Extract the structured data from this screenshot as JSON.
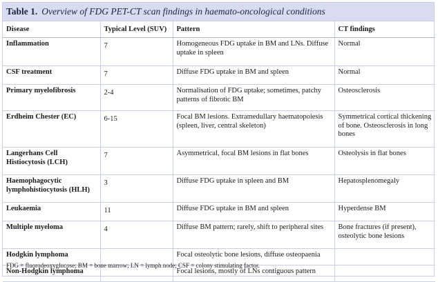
{
  "table": {
    "label": "Table 1.",
    "title": "Overview of FDG PET-CT scan findings in haemato-oncological conditions",
    "headers": [
      "Disease",
      "Typical Level (SUV)",
      "Pattern",
      "CT findings"
    ],
    "rows": [
      {
        "disease": "Inflammation",
        "level": "7",
        "pattern": "Homogeneous FDG uptake in BM and LNs. Diffuse uptake in spleen",
        "ct": "Normal"
      },
      {
        "disease": "CSF treatment",
        "level": "7",
        "pattern": "Diffuse FDG uptake in BM and spleen",
        "ct": "Normal"
      },
      {
        "disease": "Primary myelofibrosis",
        "level": "2-4",
        "pattern": "Normalisation of FDG uptake; sometimes, patchy patterns of fibrotic BM",
        "ct": "Osteosclerosis"
      },
      {
        "disease": "Erdheim Chester (EC)",
        "level": "6-15",
        "pattern": "Focal BM lesions. Extramedullary haematopoiesis (spleen, liver, central skeleton)",
        "ct": "Symmetrical cortical thickening of bone. Osteosclerosis in long bones"
      },
      {
        "disease": "Langerhans Cell Histiocytosis (LCH)",
        "level": "7",
        "pattern": "Asymmetrical, focal BM lesions in flat bones",
        "ct": "Osteolysis in flat bones"
      },
      {
        "disease": "Haemophagocytic lymphohistiocytosis (HLH)",
        "level": "3",
        "pattern": "Diffuse FDG uptake in spleen and BM",
        "ct": "Hepatosplenomegaly"
      },
      {
        "disease": "Leukaemia",
        "level": "11",
        "pattern": "Diffuse FDG uptake in BM and spleen",
        "ct": "Hyperdense BM"
      },
      {
        "disease": "Multiple myeloma",
        "level": "4",
        "pattern": "Diffuse BM pattern; rarely, shift to peripheral sites",
        "ct": "Bone fractures (if present), osteolytic bone lesions"
      },
      {
        "disease": "Hodgkin lymphoma",
        "level": "",
        "pattern": "Focal osteolytic bone lesions, diffuse osteopaenia",
        "ct": ""
      },
      {
        "disease": "Non-Hodgkin lymphoma",
        "level": "",
        "pattern": "Focal lesions, mostly of LNs contiguous pattern",
        "ct": ""
      }
    ],
    "footnote": "FDG = fluorodeoxyglucose; BM = bone marrow; LN = lymph node; CSF = colony stimulating factor."
  },
  "colors": {
    "title_background": "#d9dcf0",
    "border": "#c9cfe3",
    "title_text": "#1b2540"
  }
}
